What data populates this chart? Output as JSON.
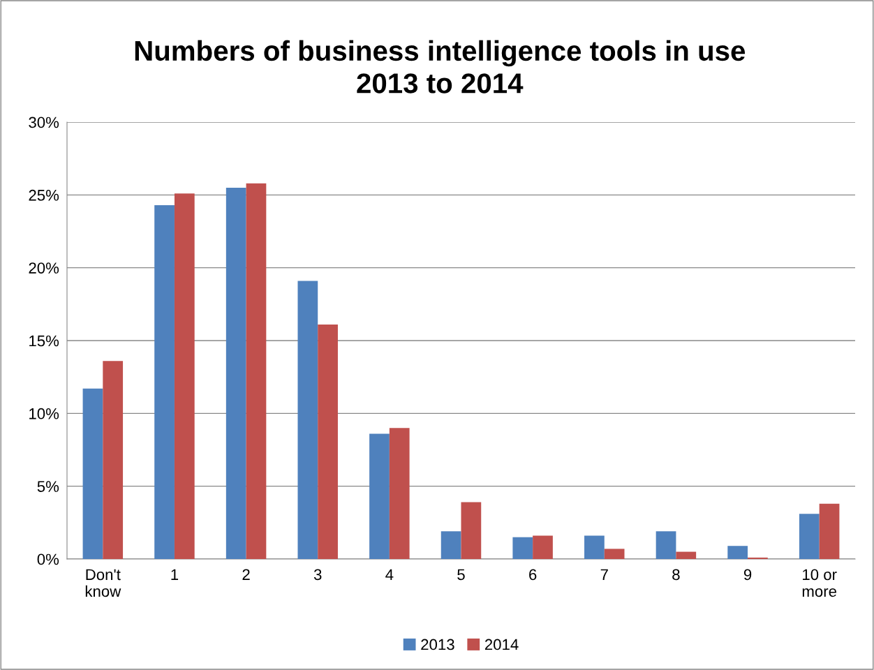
{
  "chart_data": {
    "type": "bar",
    "title": "Numbers of business intelligence tools in use\n2013 to 2014",
    "categories": [
      "Don't\nknow",
      "1",
      "2",
      "3",
      "4",
      "5",
      "6",
      "7",
      "8",
      "9",
      "10 or\nmore"
    ],
    "series": [
      {
        "name": "2013",
        "color": "#4f81bd",
        "values": [
          11.7,
          24.3,
          25.5,
          19.1,
          8.6,
          1.9,
          1.5,
          1.6,
          1.9,
          0.9,
          3.1
        ]
      },
      {
        "name": "2014",
        "color": "#c0504d",
        "values": [
          13.6,
          25.1,
          25.8,
          16.1,
          9.0,
          3.9,
          1.6,
          0.7,
          0.5,
          0.1,
          3.8
        ]
      }
    ],
    "ylim": [
      0,
      30
    ],
    "yticks": [
      {
        "value": 0,
        "label": "0%"
      },
      {
        "value": 5,
        "label": "5%"
      },
      {
        "value": 10,
        "label": "10%"
      },
      {
        "value": 15,
        "label": "15%"
      },
      {
        "value": 20,
        "label": "20%"
      },
      {
        "value": 25,
        "label": "25%"
      },
      {
        "value": 30,
        "label": "30%"
      }
    ],
    "grid": "y",
    "legend": "bottom"
  }
}
